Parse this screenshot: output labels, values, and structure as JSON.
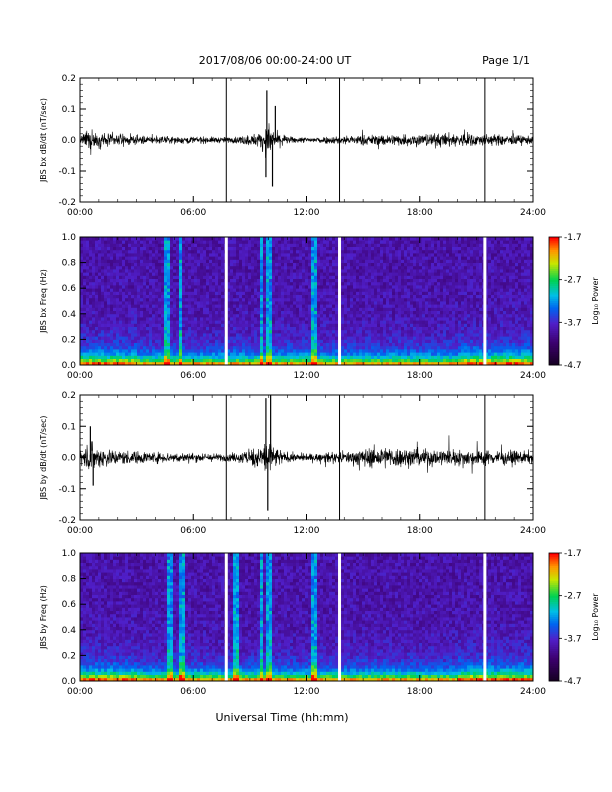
{
  "header": {
    "date_title": "2017/08/06  00:00-24:00 UT",
    "page_label": "Page 1/1"
  },
  "xlabel": "Universal Time (hh:mm)",
  "chart_data": [
    {
      "type": "line",
      "ylabel": "JBS bx dB/dt (nT/sec)",
      "xlim": [
        0,
        24
      ],
      "ylim": [
        -0.2,
        0.2
      ],
      "xticks": [
        "00:00",
        "06:00",
        "12:00",
        "18:00",
        "24:00"
      ],
      "yticks": [
        "0.2",
        "0.1",
        "0.0",
        "-0.1",
        "-0.2"
      ],
      "gap_markers_hours": [
        7.75,
        13.75,
        21.45
      ],
      "noise_envelope": {
        "hours": [
          0,
          0.5,
          1,
          2,
          4,
          6,
          8,
          9.5,
          10,
          10.3,
          11,
          12,
          14,
          16,
          18,
          20,
          22,
          24
        ],
        "amplitude": [
          0.02,
          0.06,
          0.04,
          0.03,
          0.02,
          0.02,
          0.015,
          0.04,
          0.09,
          0.05,
          0.02,
          0.015,
          0.025,
          0.03,
          0.035,
          0.04,
          0.03,
          0.025
        ]
      },
      "spikes": [
        {
          "hour": 9.9,
          "value": 0.16
        },
        {
          "hour": 9.85,
          "value": -0.12
        },
        {
          "hour": 10.2,
          "value": -0.15
        },
        {
          "hour": 10.35,
          "value": 0.11
        }
      ]
    },
    {
      "type": "heatmap",
      "ylabel": "JBS bx Freq (Hz)",
      "xlim": [
        0,
        24
      ],
      "ylim": [
        0.0,
        1.0
      ],
      "xticks": [
        "00:00",
        "06:00",
        "12:00",
        "18:00",
        "24:00"
      ],
      "yticks": [
        "1.0",
        "0.8",
        "0.6",
        "0.4",
        "0.2",
        "0.0"
      ],
      "gap_markers_hours": [
        7.75,
        13.75,
        21.45
      ],
      "bright_columns_hours": [
        4.6,
        5.3,
        9.6,
        9.9,
        10.05,
        12.4
      ],
      "colorbar": {
        "label": "Log₁₀ Power",
        "ticks": [
          "-1.7",
          "-2.7",
          "-3.7",
          "-4.7"
        ],
        "range": [
          -4.7,
          -1.7
        ]
      }
    },
    {
      "type": "line",
      "ylabel": "JBS by dB/dt (nT/sec)",
      "xlim": [
        0,
        24
      ],
      "ylim": [
        -0.2,
        0.2
      ],
      "xticks": [
        "00:00",
        "06:00",
        "12:00",
        "18:00",
        "24:00"
      ],
      "yticks": [
        "0.2",
        "0.1",
        "0.0",
        "-0.1",
        "-0.2"
      ],
      "gap_markers_hours": [
        7.75,
        13.75,
        21.45
      ],
      "noise_envelope": {
        "hours": [
          0,
          0.5,
          1,
          2,
          4,
          6,
          8,
          9.5,
          10,
          10.3,
          11,
          12,
          14,
          15,
          16,
          18,
          20,
          22,
          24
        ],
        "amplitude": [
          0.03,
          0.08,
          0.06,
          0.04,
          0.03,
          0.025,
          0.02,
          0.06,
          0.12,
          0.06,
          0.025,
          0.02,
          0.03,
          0.05,
          0.06,
          0.05,
          0.045,
          0.04,
          0.035
        ]
      },
      "spikes": [
        {
          "hour": 9.85,
          "value": 0.19
        },
        {
          "hour": 9.95,
          "value": -0.17
        },
        {
          "hour": 10.1,
          "value": 0.2
        },
        {
          "hour": 0.55,
          "value": 0.1
        },
        {
          "hour": 0.7,
          "value": -0.09
        }
      ]
    },
    {
      "type": "heatmap",
      "ylabel": "JBS by Freq (Hz)",
      "xlim": [
        0,
        24
      ],
      "ylim": [
        0.0,
        1.0
      ],
      "xticks": [
        "00:00",
        "06:00",
        "12:00",
        "18:00",
        "24:00"
      ],
      "yticks": [
        "1.0",
        "0.8",
        "0.6",
        "0.4",
        "0.2",
        "0.0"
      ],
      "gap_markers_hours": [
        7.75,
        13.75,
        21.45
      ],
      "bright_columns_hours": [
        4.8,
        5.4,
        8.3,
        9.6,
        9.9,
        10.05,
        12.4
      ],
      "colorbar": {
        "label": "Log₁₀ Power",
        "ticks": [
          "-1.7",
          "-2.7",
          "-3.7",
          "-4.7"
        ],
        "range": [
          -4.7,
          -1.7
        ]
      }
    }
  ]
}
